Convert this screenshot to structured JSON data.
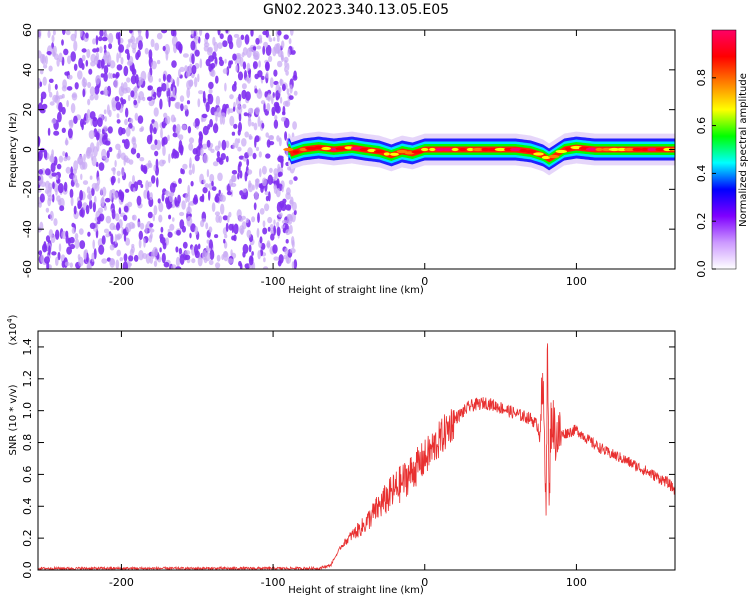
{
  "title": "GN02.2023.340.13.05.E05",
  "chart_data": [
    {
      "type": "heatmap",
      "name": "spectrogram",
      "xlabel": "Height of straight line (km)",
      "ylabel": "Frequency (Hz)",
      "xlim": [
        -255,
        165
      ],
      "ylim": [
        -60,
        60
      ],
      "xticks": [
        -200,
        -100,
        0,
        100
      ],
      "xtick_labels": [
        "-200",
        "-100",
        "0",
        "100"
      ],
      "yticks": [
        -60,
        -40,
        -20,
        0,
        20,
        40,
        60
      ],
      "ytick_labels": [
        "-60",
        "-40",
        "-20",
        "0",
        "20",
        "40",
        "60"
      ],
      "noise_region_x": [
        -255,
        -85
      ],
      "band_x": [
        -90,
        165
      ],
      "band_center_hz": [
        {
          "x": -88,
          "y": -2
        },
        {
          "x": -80,
          "y": 0
        },
        {
          "x": -70,
          "y": 1
        },
        {
          "x": -60,
          "y": 0
        },
        {
          "x": -48,
          "y": 1
        },
        {
          "x": -40,
          "y": 0
        },
        {
          "x": -30,
          "y": -1
        },
        {
          "x": -22,
          "y": -3
        },
        {
          "x": -15,
          "y": -1
        },
        {
          "x": -8,
          "y": -2
        },
        {
          "x": 0,
          "y": 0
        },
        {
          "x": 20,
          "y": 0
        },
        {
          "x": 40,
          "y": 0
        },
        {
          "x": 60,
          "y": 0
        },
        {
          "x": 70,
          "y": -1
        },
        {
          "x": 78,
          "y": -3
        },
        {
          "x": 82,
          "y": -5
        },
        {
          "x": 86,
          "y": -3
        },
        {
          "x": 92,
          "y": 0
        },
        {
          "x": 100,
          "y": 1
        },
        {
          "x": 112,
          "y": 0
        },
        {
          "x": 130,
          "y": 0
        },
        {
          "x": 165,
          "y": 0
        }
      ],
      "band_halfwidth_hz": 2.5,
      "colorbar": {
        "label": "Normalized spectral amplitude",
        "range": [
          0,
          1
        ],
        "ticks": [
          0.0,
          0.2,
          0.4,
          0.6,
          0.8
        ],
        "tick_labels": [
          "0.0",
          "0.2",
          "0.4",
          "0.6",
          "0.8"
        ],
        "colors": [
          "#ffffff",
          "#cc99ff",
          "#7f00ff",
          "#0000ff",
          "#00ffff",
          "#00ff00",
          "#ffff00",
          "#ff8000",
          "#ff0000",
          "#ff0066"
        ]
      },
      "colors": {
        "noise": "#7f2ff0",
        "noise_light": "#c8a8f4"
      }
    },
    {
      "type": "line",
      "name": "snr",
      "xlabel": "Height of straight line (km)",
      "ylabel": "SNR (10 * v/v)",
      "scale_label": "(x10",
      "scale_exponent": "4",
      "scale_close": ")",
      "xlim": [
        -255,
        165
      ],
      "ylim": [
        0,
        1.5
      ],
      "xticks": [
        -200,
        -100,
        0,
        100
      ],
      "xtick_labels": [
        "-200",
        "-100",
        "0",
        "100"
      ],
      "yticks": [
        0.0,
        0.2,
        0.4,
        0.6,
        0.8,
        1.0,
        1.2,
        1.4
      ],
      "ytick_labels": [
        "0.0",
        "0.2",
        "0.4",
        "0.6",
        "0.8",
        "1.0",
        "1.2",
        "1.4"
      ],
      "series": [
        {
          "color": "#e83030",
          "x": [
            -255,
            -200,
            -150,
            -100,
            -70,
            -62,
            -55,
            -48,
            -40,
            -30,
            -20,
            -10,
            0,
            10,
            20,
            30,
            40,
            50,
            60,
            70,
            75,
            78,
            80,
            81,
            82,
            83,
            84,
            86,
            90,
            100,
            110,
            120,
            130,
            140,
            150,
            160,
            165
          ],
          "values": [
            0.01,
            0.01,
            0.01,
            0.01,
            0.01,
            0.03,
            0.15,
            0.22,
            0.28,
            0.4,
            0.5,
            0.6,
            0.7,
            0.82,
            0.95,
            1.03,
            1.05,
            1.02,
            0.98,
            0.95,
            0.9,
            1.1,
            0.5,
            1.45,
            0.3,
            0.9,
            0.95,
            0.85,
            0.85,
            0.88,
            0.8,
            0.74,
            0.7,
            0.65,
            0.6,
            0.55,
            0.5
          ]
        }
      ]
    }
  ]
}
